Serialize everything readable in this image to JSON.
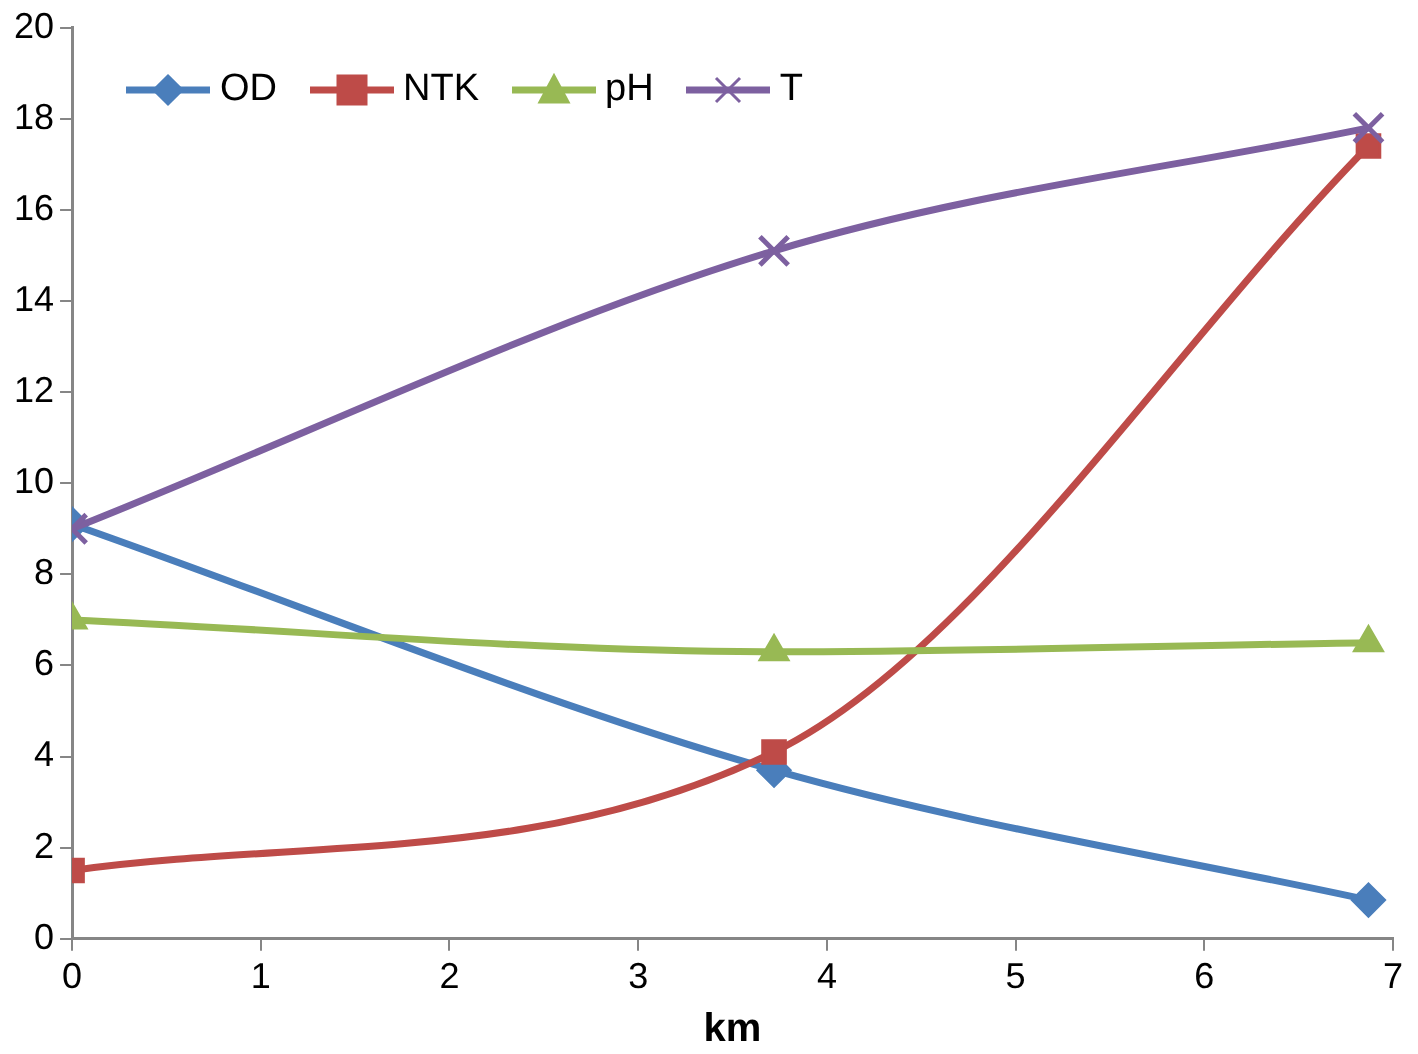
{
  "chart_data": {
    "type": "line",
    "xlabel": "km",
    "x": [
      0,
      3.72,
      6.87
    ],
    "series": [
      {
        "name": "OD",
        "color": "#4a7ebb",
        "marker": "diamond",
        "values": [
          9.1,
          3.7,
          0.85
        ]
      },
      {
        "name": "NTK",
        "color": "#be4b48",
        "marker": "square",
        "values": [
          1.5,
          4.1,
          17.4
        ]
      },
      {
        "name": "pH",
        "color": "#98b954",
        "marker": "triangle",
        "values": [
          7.0,
          6.3,
          6.5
        ]
      },
      {
        "name": "T",
        "color": "#7d60a0",
        "marker": "cross",
        "values": [
          9.0,
          15.1,
          17.8
        ]
      }
    ],
    "xlim": [
      0,
      7
    ],
    "xticks": [
      0,
      1,
      2,
      3,
      4,
      5,
      6,
      7
    ],
    "ylim": [
      0,
      20
    ],
    "yticks": [
      0,
      2,
      4,
      6,
      8,
      10,
      12,
      14,
      16,
      18,
      20
    ],
    "grid": false,
    "legend": "top left",
    "line_style": "solid"
  }
}
